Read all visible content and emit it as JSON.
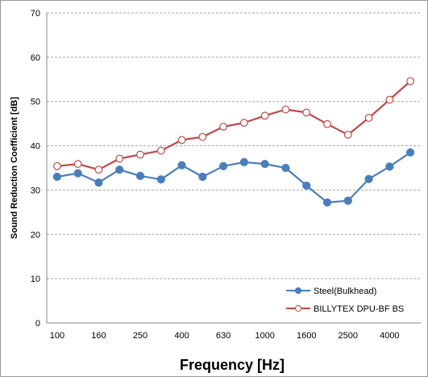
{
  "chart_data": {
    "type": "line",
    "xlabel": "Frequency [Hz]",
    "ylabel": "Sound Reduction Coefficient [dB]",
    "ylim": [
      0,
      70
    ],
    "yticks": [
      0,
      10,
      20,
      30,
      40,
      50,
      60,
      70
    ],
    "grid": true,
    "legend_position": "bottom-right",
    "x": [
      100,
      125,
      160,
      200,
      250,
      315,
      400,
      500,
      630,
      800,
      1000,
      1250,
      1600,
      2000,
      2500,
      3150,
      4000,
      5000
    ],
    "xtick_labels": [
      "100",
      "160",
      "250",
      "400",
      "630",
      "1000",
      "1600",
      "2500",
      "4000"
    ],
    "xtick_indices": [
      0,
      2,
      4,
      6,
      8,
      10,
      12,
      14,
      16
    ],
    "series": [
      {
        "name": "Steel(Bulkhead)",
        "color": "#4a7ebb",
        "marker": "filled-circle",
        "values": [
          33.0,
          33.8,
          31.7,
          34.6,
          33.2,
          32.4,
          35.6,
          33.0,
          35.4,
          36.3,
          35.9,
          35.0,
          31.0,
          27.2,
          27.6,
          32.5,
          35.3,
          38.5
        ]
      },
      {
        "name": "BILLYTEX DPU-BF BS",
        "color": "#be4b48",
        "marker": "hollow-circle",
        "values": [
          35.4,
          35.9,
          34.6,
          37.1,
          38.0,
          38.9,
          41.3,
          42.0,
          44.3,
          45.2,
          46.8,
          48.2,
          47.5,
          44.9,
          42.5,
          46.3,
          50.4,
          54.6
        ]
      }
    ]
  }
}
